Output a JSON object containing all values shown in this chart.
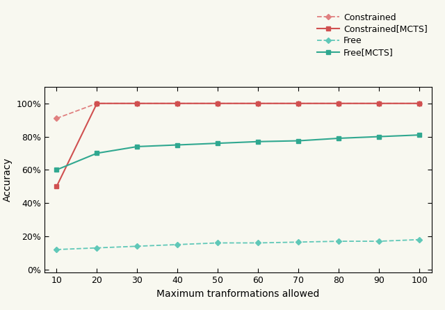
{
  "x": [
    10,
    20,
    30,
    40,
    50,
    60,
    70,
    80,
    90,
    100
  ],
  "constrained": [
    0.91,
    1.0,
    1.0,
    1.0,
    1.0,
    1.0,
    1.0,
    1.0,
    1.0,
    1.0
  ],
  "constrained_mcts": [
    0.5,
    1.0,
    1.0,
    1.0,
    1.0,
    1.0,
    1.0,
    1.0,
    1.0,
    1.0
  ],
  "free": [
    0.12,
    0.13,
    0.14,
    0.15,
    0.16,
    0.16,
    0.165,
    0.17,
    0.17,
    0.18
  ],
  "free_mcts": [
    0.6,
    0.7,
    0.74,
    0.75,
    0.76,
    0.77,
    0.775,
    0.79,
    0.8,
    0.81
  ],
  "color_constrained": "#e08080",
  "color_constrained_mcts": "#d05050",
  "color_free": "#60c8b8",
  "color_free_mcts": "#30a890",
  "xlabel": "Maximum tranformations allowed",
  "ylabel": "Accuracy",
  "legend_labels": [
    "Constrained",
    "Constrained[MCTS]",
    "Free",
    "Free[MCTS]"
  ],
  "yticks": [
    0.0,
    0.2,
    0.4,
    0.6,
    0.8,
    1.0
  ],
  "xticks": [
    10,
    20,
    30,
    40,
    50,
    60,
    70,
    80,
    90,
    100
  ],
  "figsize": [
    6.4,
    4.46
  ],
  "dpi": 100,
  "bg_color": "#f8f8f0"
}
